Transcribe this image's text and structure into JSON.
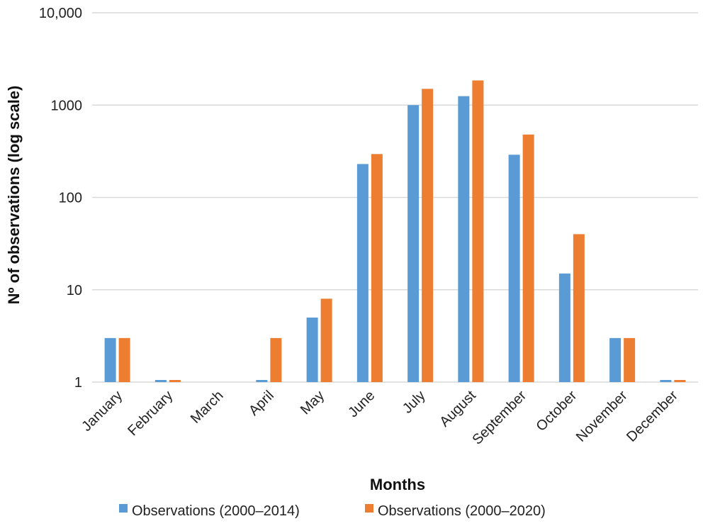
{
  "chart_data": {
    "type": "bar",
    "title": "",
    "xlabel": "Months",
    "ylabel": "Nº of observations (log scale)",
    "yscale": "log",
    "ylim": [
      1,
      10000
    ],
    "yticks": [
      1,
      10,
      100,
      1000,
      10000
    ],
    "ytick_labels": [
      "1",
      "10",
      "100",
      "1000",
      "10,000"
    ],
    "grid": true,
    "legend_position": "bottom",
    "categories": [
      "January",
      "February",
      "March",
      "April",
      "May",
      "June",
      "July",
      "August",
      "September",
      "October",
      "November",
      "December"
    ],
    "series": [
      {
        "name": "Observations (2000–2014)",
        "color": "#5b9bd5",
        "values": [
          3,
          1,
          0,
          1,
          5,
          230,
          1000,
          1250,
          290,
          15,
          3,
          1
        ]
      },
      {
        "name": "Observations (2000–2020)",
        "color": "#ed7d31",
        "values": [
          3,
          1,
          0,
          3,
          8,
          295,
          1500,
          1850,
          480,
          40,
          3,
          1
        ]
      }
    ]
  }
}
